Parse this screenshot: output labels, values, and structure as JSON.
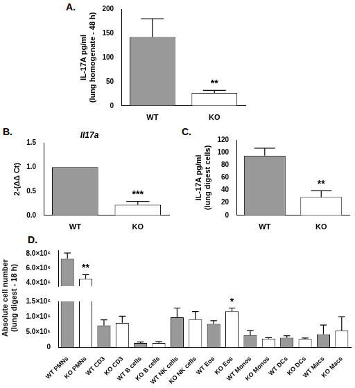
{
  "chart_data": [
    {
      "panel": "A.",
      "type": "bar",
      "categories": [
        "WT",
        "KO"
      ],
      "values": [
        142,
        27
      ],
      "errors": [
        38,
        5
      ],
      "colors": [
        "#999999",
        "#ffffff"
      ],
      "y_label": [
        "IL-17A pg/ml",
        "(lung homogenate - 48 h)"
      ],
      "ylim": [
        0,
        200
      ],
      "yticks": [
        0,
        50,
        100,
        150,
        200
      ],
      "annotations": [
        {
          "category": "KO",
          "text": "**"
        }
      ],
      "grid": false
    },
    {
      "panel": "B.",
      "title": "Il17a",
      "type": "bar",
      "categories": [
        "WT",
        "KO"
      ],
      "values": [
        1.0,
        0.22
      ],
      "errors": [
        null,
        0.07
      ],
      "colors": [
        "#999999",
        "#ffffff"
      ],
      "y_label": [
        "2-(ΔΔ Ct)"
      ],
      "ylim": [
        0,
        1.5
      ],
      "yticks": [
        {
          "value": 0,
          "label": "0.0"
        },
        {
          "value": 0.5,
          "label": "0.5"
        },
        {
          "value": 1,
          "label": "1.0"
        },
        {
          "value": 1.5,
          "label": "1.5"
        }
      ],
      "annotations": [
        {
          "category": "KO",
          "text": "***"
        }
      ],
      "grid": false
    },
    {
      "panel": "C.",
      "type": "bar",
      "categories": [
        "WT",
        "KO"
      ],
      "values": [
        95,
        29
      ],
      "errors": [
        12,
        10
      ],
      "colors": [
        "#999999",
        "#ffffff"
      ],
      "y_label": [
        "IL-17A pg/ml",
        "(lung digest cells)"
      ],
      "ylim": [
        0,
        120
      ],
      "yticks": [
        0,
        20,
        40,
        60,
        80,
        100,
        120
      ],
      "annotations": [
        {
          "category": "KO",
          "text": "**"
        }
      ],
      "grid": false
    },
    {
      "panel": "D.",
      "type": "bar",
      "categories": [
        "WT PMNs",
        "KO PMNs",
        "WT CD3",
        "KO CD3",
        "WT B cells",
        "KO B cells",
        "WT NK cells",
        "KO NK cells",
        "WT Eos",
        "KO Eos",
        "WT Monos",
        "KO Monos",
        "WT DCs",
        "KO DCs",
        "WT Macs",
        "KO Macs"
      ],
      "values": [
        7300000,
        4500000,
        720000,
        800000,
        150000,
        150000,
        980000,
        920000,
        770000,
        1180000,
        400000,
        290000,
        320000,
        280000,
        430000,
        550000
      ],
      "errors": [
        800000,
        600000,
        180000,
        220000,
        30000,
        40000,
        300000,
        250000,
        100000,
        100000,
        150000,
        30000,
        60000,
        30000,
        300000,
        450000
      ],
      "colors": [
        "#999999",
        "#ffffff",
        "#999999",
        "#ffffff",
        "#999999",
        "#ffffff",
        "#999999",
        "#ffffff",
        "#999999",
        "#ffffff",
        "#999999",
        "#ffffff",
        "#999999",
        "#ffffff",
        "#999999",
        "#ffffff"
      ],
      "y_label": [
        "Absolute cell number",
        "(lung digest - 18 h)"
      ],
      "ylim": [
        [
          0,
          1500000
        ],
        [
          3500000,
          8500000
        ]
      ],
      "yticks": [
        [
          0,
          {
            "value": 500000,
            "label": "5.0×10⁵"
          },
          {
            "value": 1000000,
            "label": "1.0×10⁶"
          },
          {
            "value": 1500000,
            "label": "1.5×10⁶"
          }
        ],
        [
          {
            "value": 4000000,
            "label": "4.0×10⁶"
          },
          {
            "value": 6000000,
            "label": "6.0×10⁶"
          },
          {
            "value": 8000000,
            "label": "8.0×10⁶"
          }
        ]
      ],
      "annotations": [
        {
          "category": "KO PMNs",
          "text": "**"
        },
        {
          "category": "KO Eos",
          "text": "*"
        }
      ],
      "grid": false
    }
  ]
}
